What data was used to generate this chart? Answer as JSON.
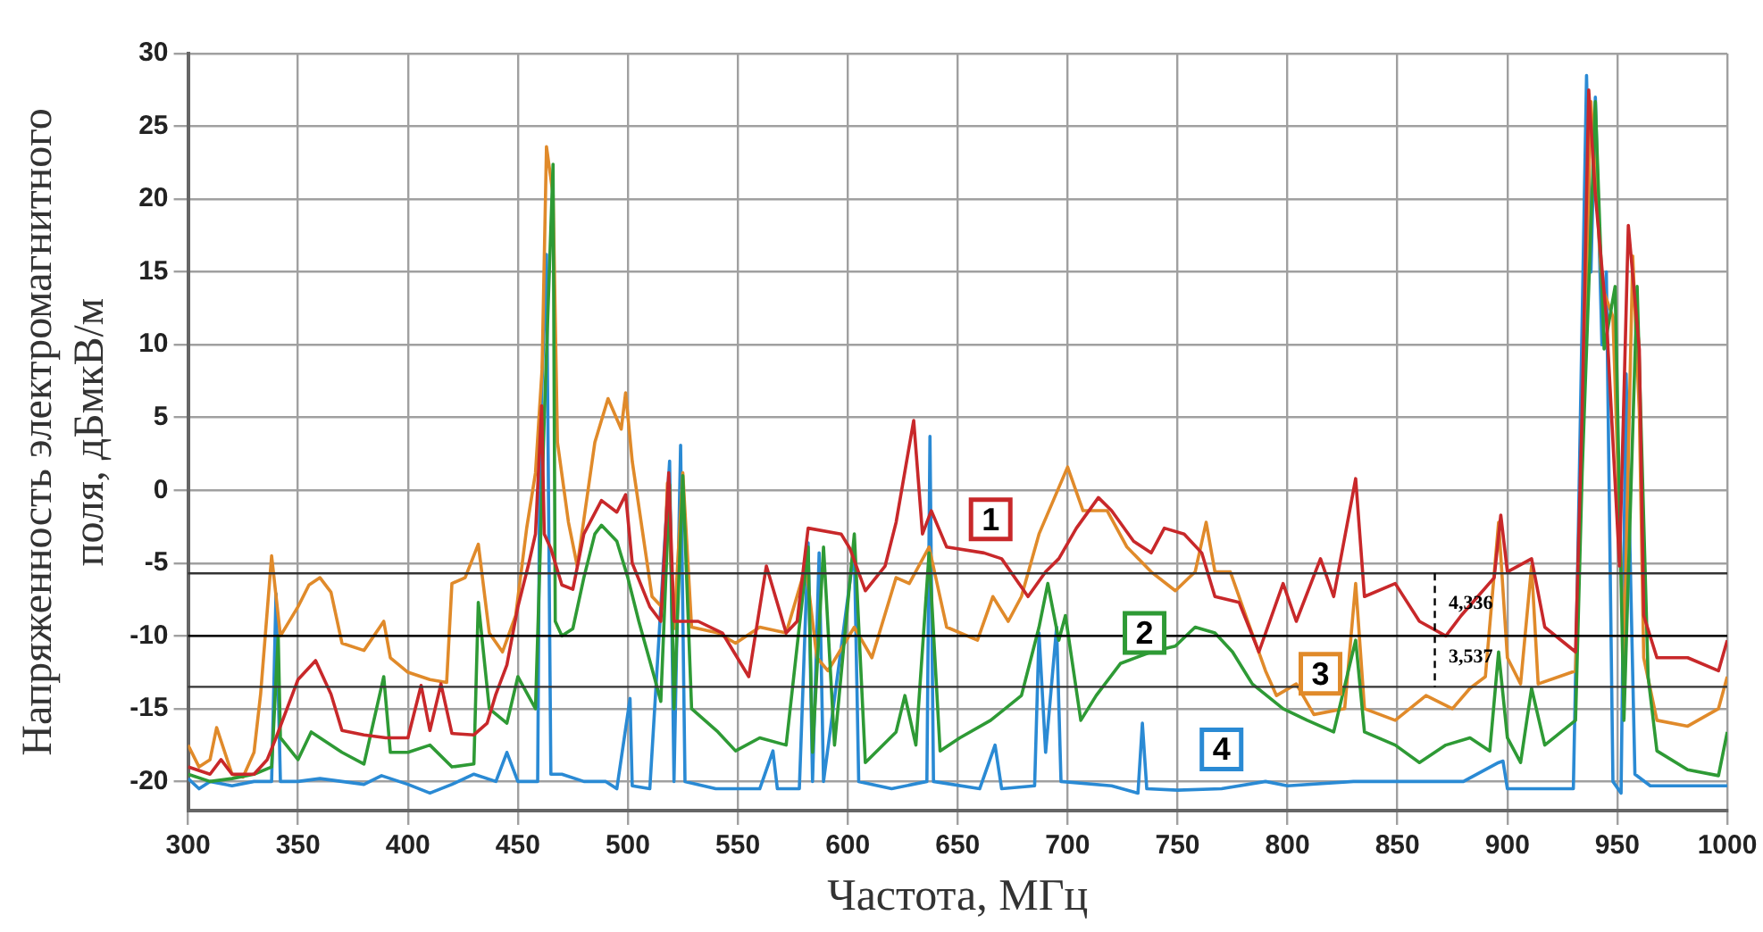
{
  "chart_data": {
    "type": "line",
    "xlabel": "Частота, МГц",
    "ylabel": "Напряженность электромагнитного поля, дБмкВ/м",
    "xlim": [
      300,
      1000
    ],
    "xticks": [
      300,
      350,
      400,
      450,
      500,
      550,
      600,
      650,
      700,
      750,
      800,
      850,
      900,
      950,
      1000
    ],
    "ylim": [
      -22,
      30
    ],
    "yticks": [
      -20,
      -15,
      -10,
      -5,
      0,
      5,
      10,
      15,
      20,
      25,
      30
    ],
    "grid": true,
    "legend": false,
    "marker": "none",
    "line_style": "solid",
    "ref_lines": [
      {
        "axis": "y",
        "value": -5.7,
        "color": "#333333"
      },
      {
        "axis": "y",
        "value": -10,
        "color": "#000000"
      },
      {
        "axis": "y",
        "value": -13.5,
        "color": "#333333"
      },
      {
        "axis": "x",
        "value": 867,
        "color": "#000000",
        "line_style": "dashed"
      }
    ],
    "annotations": [
      {
        "text": "4,336",
        "x": 870,
        "y": -7.8
      },
      {
        "text": "3,537",
        "x": 870,
        "y": -11.5
      }
    ],
    "series": [
      {
        "name": "1",
        "color": "#c8282a",
        "x": [
          300,
          310,
          315,
          320,
          330,
          336,
          340,
          345,
          350,
          358,
          365,
          370,
          380,
          390,
          400,
          406,
          410,
          415,
          420,
          430,
          436,
          440,
          445,
          450,
          455,
          458,
          460.8,
          462,
          465,
          470,
          475,
          480,
          488,
          495,
          499,
          502,
          510,
          515,
          518.6,
          521,
          532,
          543,
          555,
          563,
          572,
          577,
          582,
          597,
          601,
          608,
          617,
          622,
          630,
          634,
          638,
          645,
          662,
          670,
          682,
          690,
          696,
          704,
          714,
          720,
          730,
          738,
          744,
          753,
          761,
          767,
          778,
          787,
          798,
          804,
          815,
          821,
          831,
          835,
          849,
          860,
          872,
          879,
          894,
          897,
          900,
          911,
          917,
          931,
          934,
          937,
          940,
          945,
          951,
          955,
          960,
          962,
          968,
          982,
          996,
          1000
        ],
        "values": [
          -19,
          -19.5,
          -18.5,
          -19.5,
          -19.5,
          -18.5,
          -17,
          -15,
          -13,
          -11.7,
          -14,
          -16.5,
          -16.8,
          -17,
          -17,
          -13.4,
          -16.5,
          -13.3,
          -16.7,
          -16.8,
          -16,
          -14,
          -12,
          -8,
          -5,
          -3,
          5.8,
          -3,
          -4,
          -6.5,
          -6.8,
          -3,
          -0.7,
          -1.5,
          -0.3,
          -5,
          -8,
          -9,
          1.2,
          -9,
          -9,
          -9.8,
          -12.8,
          -5.2,
          -9.8,
          -9,
          -2.6,
          -3,
          -4,
          -6.9,
          -5.2,
          -2.2,
          4.8,
          -3,
          -1.4,
          -3.9,
          -4.3,
          -4.7,
          -7.3,
          -5.6,
          -4.7,
          -2.6,
          -0.5,
          -1.4,
          -3.5,
          -4.3,
          -2.6,
          -3,
          -4.3,
          -7.3,
          -7.7,
          -11.1,
          -6.4,
          -9,
          -4.7,
          -7.3,
          0.8,
          -7.3,
          -6.4,
          -9,
          -10,
          -8.6,
          -6,
          -1.7,
          -5.6,
          -4.7,
          -9.4,
          -11.1,
          5.4,
          27.5,
          20.3,
          11.9,
          -5.2,
          18.2,
          9.7,
          -8.6,
          -11.5,
          -11.5,
          -12.4,
          -10.3
        ]
      },
      {
        "name": "2",
        "color": "#2e9a35",
        "x": [
          300,
          310,
          320,
          330,
          338,
          341,
          342,
          350,
          356,
          370,
          380,
          389,
          392,
          400,
          410,
          420,
          430,
          432,
          437,
          445,
          450,
          458,
          460,
          462,
          466,
          467,
          470,
          475,
          480,
          485,
          488,
          495,
          500,
          505,
          512,
          515,
          519,
          521,
          525,
          529,
          541,
          549,
          560,
          572,
          582,
          584,
          589,
          594,
          603,
          608,
          622,
          626,
          631,
          637,
          642,
          651,
          665,
          679,
          687,
          691,
          696,
          699,
          706,
          713,
          724,
          738,
          749,
          758,
          767,
          775,
          784,
          798,
          809,
          821,
          831,
          835,
          849,
          860,
          872,
          883,
          892,
          896,
          900,
          906,
          911,
          917,
          931,
          934,
          940,
          944,
          949,
          953,
          959,
          964,
          968,
          982,
          996,
          1000
        ],
        "values": [
          -19.5,
          -20,
          -19.8,
          -19.5,
          -19,
          -10,
          -17,
          -18.5,
          -16.6,
          -18,
          -18.8,
          -12.8,
          -18,
          -18,
          -17.5,
          -19,
          -18.8,
          -7.7,
          -15,
          -16,
          -12.8,
          -15,
          -5,
          5,
          22.4,
          -9,
          -10,
          -9.5,
          -6,
          -3,
          -2.4,
          -3.5,
          -6,
          -9,
          -12.8,
          -14.5,
          0.4,
          -15,
          1,
          -15,
          -16.6,
          -17.9,
          -17,
          -17.5,
          -3.9,
          -18,
          -3.9,
          -17.5,
          -3,
          -18.7,
          -16.6,
          -14.1,
          -17.5,
          -4.3,
          -17.9,
          -17,
          -15.8,
          -14.1,
          -9.4,
          -6.4,
          -10.3,
          -8.6,
          -15.8,
          -14.1,
          -11.9,
          -11.1,
          -10.7,
          -9.4,
          -9.8,
          -11.1,
          -13.3,
          -15,
          -15.8,
          -16.6,
          -10.3,
          -16.6,
          -17.5,
          -18.7,
          -17.5,
          -17,
          -17.9,
          -11.1,
          -17,
          -18.7,
          -13.6,
          -17.5,
          -15.8,
          1.2,
          26.7,
          9.7,
          14,
          -15.8,
          14,
          -12.8,
          -17.9,
          -19.2,
          -19.6,
          -16.6
        ]
      },
      {
        "name": "3",
        "color": "#e08a2a",
        "x": [
          300,
          305,
          310,
          313,
          320,
          325,
          330,
          333,
          338,
          342,
          350,
          355,
          360,
          365,
          370,
          380,
          389,
          392,
          400,
          410,
          417.6,
          420,
          426,
          432,
          437,
          443,
          449,
          454,
          458,
          461,
          463,
          466,
          468,
          473,
          477,
          485,
          491,
          497,
          499,
          502,
          511,
          516,
          518,
          521,
          525,
          529,
          541,
          549,
          560,
          572,
          581,
          586,
          591,
          603,
          611,
          622,
          628,
          637,
          645,
          659,
          666,
          673,
          679,
          687,
          700,
          707,
          718,
          727,
          738,
          749,
          758,
          763,
          767,
          774,
          781,
          790,
          795,
          804,
          812,
          826,
          831,
          835,
          849,
          863,
          875,
          883,
          890,
          896,
          900,
          906,
          911,
          914,
          931,
          934,
          938,
          943,
          948,
          953,
          957,
          960,
          962,
          968,
          982,
          996,
          1000
        ],
        "values": [
          -17.5,
          -19,
          -18.5,
          -16.3,
          -19.5,
          -19.7,
          -18,
          -14,
          -4.5,
          -10,
          -8,
          -6.5,
          -6,
          -7,
          -10.5,
          -11,
          -9,
          -11.5,
          -12.5,
          -13,
          -13.2,
          -6.4,
          -6,
          -3.7,
          -9.8,
          -11.1,
          -8.6,
          -2.6,
          1.2,
          8.3,
          23.6,
          20.3,
          3.3,
          -2.2,
          -5.2,
          3.3,
          6.3,
          4.2,
          6.7,
          2,
          -7.3,
          -8.1,
          0.5,
          -9.5,
          1.2,
          -9.4,
          -9.8,
          -10.5,
          -9.4,
          -9.8,
          -5.2,
          -11.5,
          -12.4,
          -9.4,
          -11.5,
          -6,
          -6.4,
          -3.9,
          -9.4,
          -10.3,
          -7.3,
          -9,
          -7.3,
          -3,
          1.6,
          -1.4,
          -1.4,
          -3.9,
          -5.6,
          -6.9,
          -5.6,
          -2.2,
          -5.6,
          -5.6,
          -8.6,
          -12.4,
          -14.1,
          -13.3,
          -15.4,
          -15,
          -6.4,
          -15,
          -15.8,
          -14.1,
          -15,
          -13.6,
          -12.8,
          -2.2,
          -11.5,
          -13.3,
          -5.2,
          -13.3,
          -12.4,
          3.3,
          26.7,
          14,
          11.9,
          -11.5,
          16.1,
          5.4,
          -11.5,
          -15.8,
          -16.2,
          -15,
          -12.8
        ]
      },
      {
        "name": "4",
        "color": "#2a8ad4",
        "x": [
          300,
          305,
          310,
          320,
          330,
          338,
          340,
          342,
          350,
          360,
          370,
          380,
          388,
          400,
          410,
          420,
          430,
          440,
          445,
          450,
          459,
          460,
          463,
          465,
          470,
          480,
          490,
          495,
          501,
          502,
          510,
          519,
          521,
          524,
          526,
          540,
          560,
          566,
          568,
          578,
          582,
          584,
          587,
          589,
          603,
          605,
          620,
          636,
          637.4,
          639,
          660,
          667,
          670,
          685,
          687,
          690,
          695,
          697,
          720,
          732,
          734,
          736,
          750,
          770,
          790,
          800,
          830,
          855,
          880,
          896,
          898,
          900,
          913,
          930,
          932,
          936,
          938,
          940,
          943,
          945,
          948,
          951.7,
          954,
          958,
          965,
          1000
        ],
        "values": [
          -19.8,
          -20.5,
          -20,
          -20.3,
          -20,
          -20,
          -7.1,
          -20,
          -20,
          -19.8,
          -20,
          -20.2,
          -19.6,
          -20.2,
          -20.8,
          -20.2,
          -19.5,
          -20,
          -18,
          -20,
          -20,
          3,
          16.2,
          -19.5,
          -19.5,
          -20,
          -20,
          -20.5,
          -14.3,
          -20.3,
          -20.5,
          2,
          -20,
          3.1,
          -20,
          -20.5,
          -20.5,
          -17.9,
          -20.5,
          -20.5,
          -3.6,
          -20,
          -4.3,
          -20,
          -4,
          -20,
          -20.5,
          -20,
          3.7,
          -20,
          -20.5,
          -17.5,
          -20.5,
          -20.3,
          -9.8,
          -18,
          -9.4,
          -20,
          -20.3,
          -20.8,
          -16,
          -20.5,
          -20.6,
          -20.5,
          -20,
          -20.3,
          -20,
          -20,
          -20,
          -18.7,
          -18.6,
          -20.5,
          -20.5,
          -20.5,
          -5,
          28.5,
          15,
          27,
          10,
          15,
          -20,
          -20.8,
          8,
          -19.5,
          -20.3,
          -20.3
        ]
      }
    ]
  }
}
